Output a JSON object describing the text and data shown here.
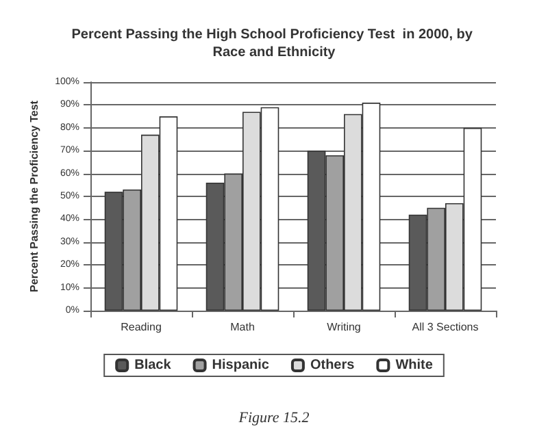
{
  "chart_data": {
    "type": "bar",
    "title": "Percent Passing the High School Proficiency Test  in 2000, by Race and Ethnicity",
    "ylabel": "Percent Passing the Proficiency Test",
    "categories": [
      "Reading",
      "Math",
      "Writing",
      "All 3 Sections"
    ],
    "series": [
      {
        "name": "Black",
        "color": "#5a5a5a",
        "values": [
          52,
          56,
          70,
          42
        ]
      },
      {
        "name": "Hispanic",
        "color": "#a0a0a0",
        "values": [
          53,
          60,
          68,
          45
        ]
      },
      {
        "name": "Others",
        "color": "#dcdcdc",
        "values": [
          77,
          87,
          86,
          47
        ]
      },
      {
        "name": "White",
        "color": "#ffffff",
        "values": [
          85,
          89,
          91,
          80
        ]
      }
    ],
    "ylim": [
      0,
      100
    ],
    "yticks": [
      {
        "value": 0,
        "label": "0%"
      },
      {
        "value": 10,
        "label": "10%"
      },
      {
        "value": 20,
        "label": "20%"
      },
      {
        "value": 30,
        "label": "30%"
      },
      {
        "value": 40,
        "label": "40%"
      },
      {
        "value": 50,
        "label": "50%"
      },
      {
        "value": 60,
        "label": "60%"
      },
      {
        "value": 70,
        "label": "70%"
      },
      {
        "value": 80,
        "label": "80%"
      },
      {
        "value": 90,
        "label": "90%"
      },
      {
        "value": 100,
        "label": "100%"
      }
    ],
    "grid": "y",
    "legend": "bottom",
    "annotations": [
      "Figure 15.2"
    ]
  }
}
